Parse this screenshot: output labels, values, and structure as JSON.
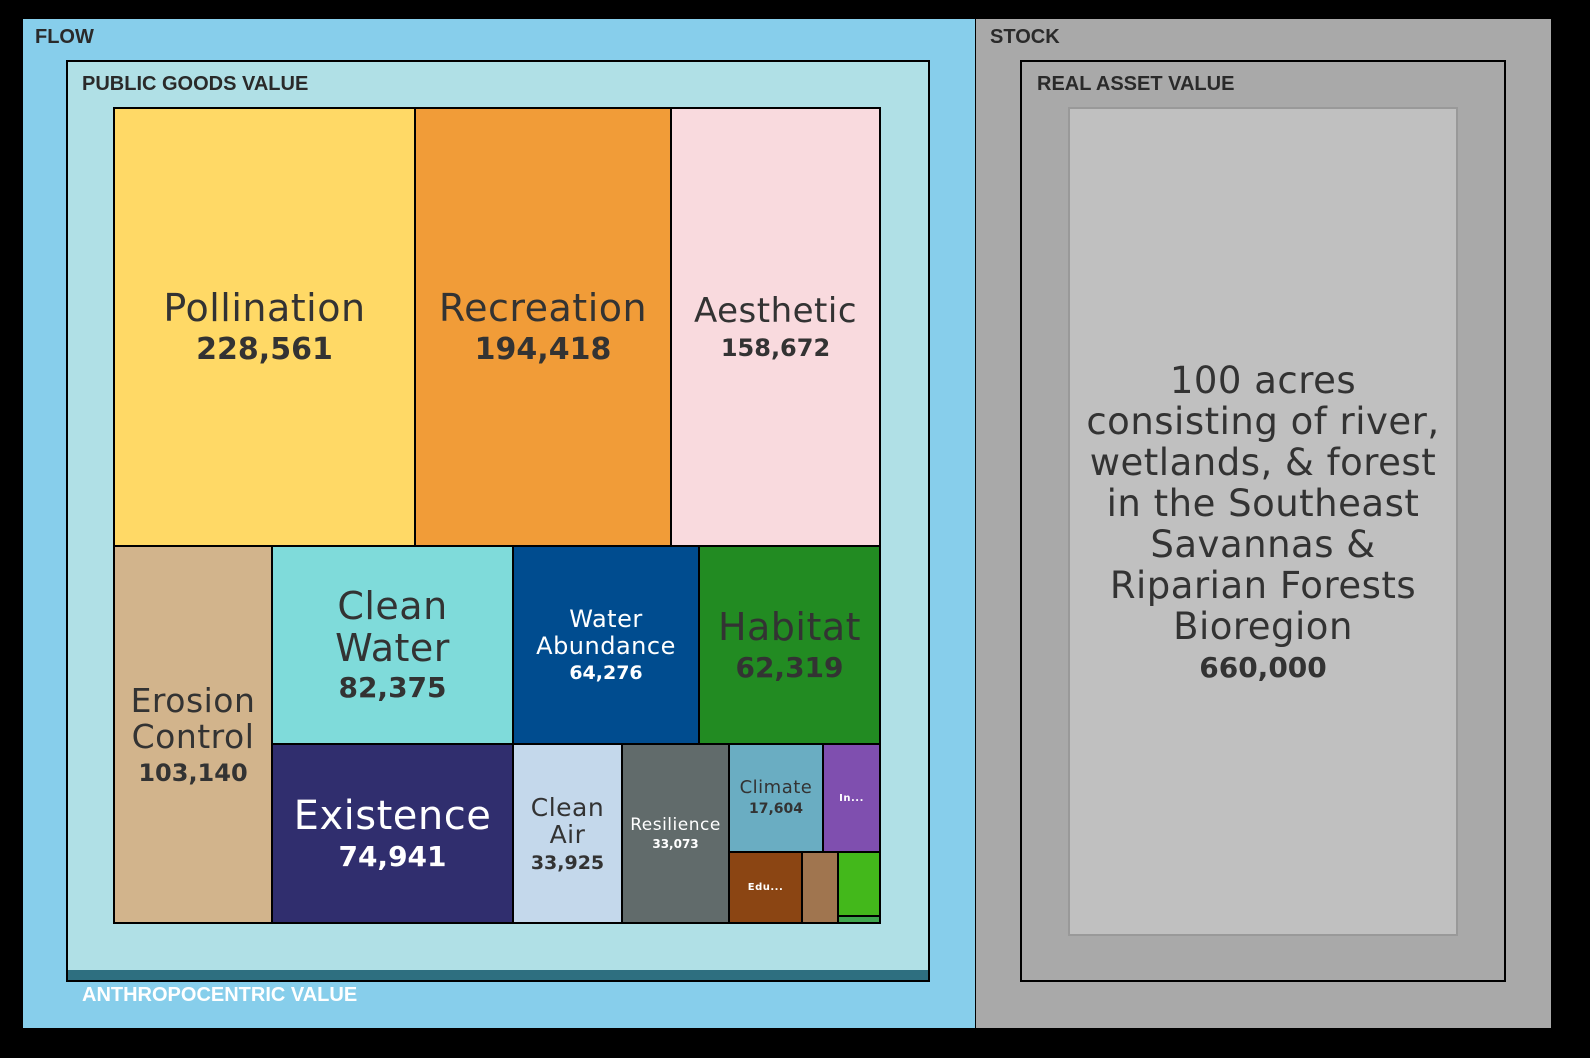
{
  "labels": {
    "flow": "FLOW",
    "stock": "STOCK",
    "public_goods": "PUBLIC GOODS VALUE",
    "real_asset": "REAL ASSET VALUE",
    "anthropocentric": "ANTHROPOCENTRIC VALUE"
  },
  "colors": {
    "flow_bg": "#87CEEB",
    "stock_bg": "#A9A9A9",
    "public_goods_bg": "#B0E0E6",
    "anthropocentric_bar": "#2E6F80",
    "stock_tile": "#C0C0C0"
  },
  "chart_data": {
    "type": "treemap",
    "groups": [
      {
        "name": "PUBLIC GOODS VALUE",
        "parent": "FLOW",
        "items": [
          {
            "label": "Pollination",
            "value": 228561,
            "value_text": "228,561",
            "color": "#FFD966"
          },
          {
            "label": "Recreation",
            "value": 194418,
            "value_text": "194,418",
            "color": "#F19C38"
          },
          {
            "label": "Aesthetic",
            "value": 158672,
            "value_text": "158,672",
            "color": "#F9DADE"
          },
          {
            "label": "Erosion Control",
            "value": 103140,
            "value_text": "103,140",
            "color": "#D2B48C"
          },
          {
            "label": "Clean Water",
            "value": 82375,
            "value_text": "82,375",
            "color": "#7FDBDA"
          },
          {
            "label": "Existence",
            "value": 74941,
            "value_text": "74,941",
            "color": "#302E6E"
          },
          {
            "label": "Water Abundance",
            "value": 64276,
            "value_text": "64,276",
            "color": "#004C8F"
          },
          {
            "label": "Habitat",
            "value": 62319,
            "value_text": "62,319",
            "color": "#228B22"
          },
          {
            "label": "Clean Air",
            "value": 33925,
            "value_text": "33,925",
            "color": "#C4D8EB"
          },
          {
            "label": "Resilience",
            "value": 33073,
            "value_text": "33,073",
            "color": "#616B6B"
          },
          {
            "label": "Climate",
            "value": 17604,
            "value_text": "17,604",
            "color": "#6AADC2"
          },
          {
            "label": "In...",
            "value_text": "",
            "color": "#7F4FAF"
          },
          {
            "label": "Edu...",
            "value_text": "",
            "color": "#8B4513"
          },
          {
            "label": "",
            "value_text": "",
            "color": "#A0754F"
          },
          {
            "label": "",
            "value_text": "",
            "color": "#43B81B"
          },
          {
            "label": "",
            "value_text": "",
            "color": "#3FA84F"
          }
        ]
      },
      {
        "name": "REAL ASSET VALUE",
        "parent": "STOCK",
        "items": [
          {
            "label": "100 acres consisting of river, wetlands, & forest in the Southeast Savannas & Riparian Forests Bioregion",
            "value": 660000,
            "value_text": "660,000",
            "color": "#C0C0C0"
          }
        ]
      }
    ]
  }
}
